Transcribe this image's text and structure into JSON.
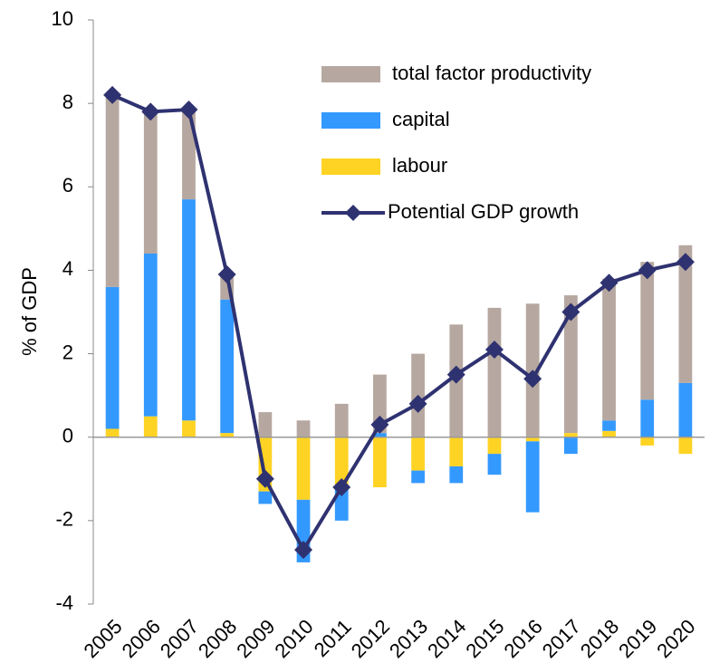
{
  "chart_data": {
    "type": "bar",
    "stacked": true,
    "y_label": "% of GDP",
    "categories": [
      "2005",
      "2006",
      "2007",
      "2008",
      "2009",
      "2010",
      "2011",
      "2012",
      "2013",
      "2014",
      "2015",
      "2016",
      "2017",
      "2018",
      "2019",
      "2020"
    ],
    "series": [
      {
        "name": "labour",
        "type": "bar",
        "color": "#ffd324",
        "values": [
          0.2,
          0.5,
          0.4,
          0.1,
          -1.3,
          -1.5,
          -1.2,
          -1.2,
          -0.8,
          -0.7,
          -0.4,
          -0.1,
          0.1,
          0.15,
          -0.2,
          -0.4
        ]
      },
      {
        "name": "capital",
        "type": "bar",
        "color": "#3399ff",
        "values": [
          3.4,
          3.9,
          5.3,
          3.2,
          -0.3,
          -1.5,
          -0.8,
          0.1,
          -0.3,
          -0.4,
          -0.5,
          -1.7,
          -0.4,
          0.25,
          0.9,
          1.3
        ]
      },
      {
        "name": "total factor productivity",
        "type": "bar",
        "color": "#b6a8a0",
        "values": [
          4.6,
          3.4,
          2.2,
          0.6,
          0.6,
          0.4,
          0.8,
          1.4,
          2.0,
          2.7,
          3.1,
          3.2,
          3.3,
          3.4,
          3.3,
          3.3
        ]
      },
      {
        "name": "Potential GDP growth",
        "type": "line",
        "color": "#2f3270",
        "values": [
          8.2,
          7.8,
          7.85,
          3.9,
          -1.0,
          -2.7,
          -1.2,
          0.3,
          0.8,
          1.5,
          2.1,
          1.4,
          3.0,
          3.7,
          4.0,
          4.2
        ]
      }
    ],
    "legend_order": [
      2,
      1,
      0,
      3
    ],
    "ylim": [
      -4,
      10
    ],
    "yticks": [
      -4,
      -2,
      0,
      2,
      4,
      6,
      8,
      10
    ]
  }
}
